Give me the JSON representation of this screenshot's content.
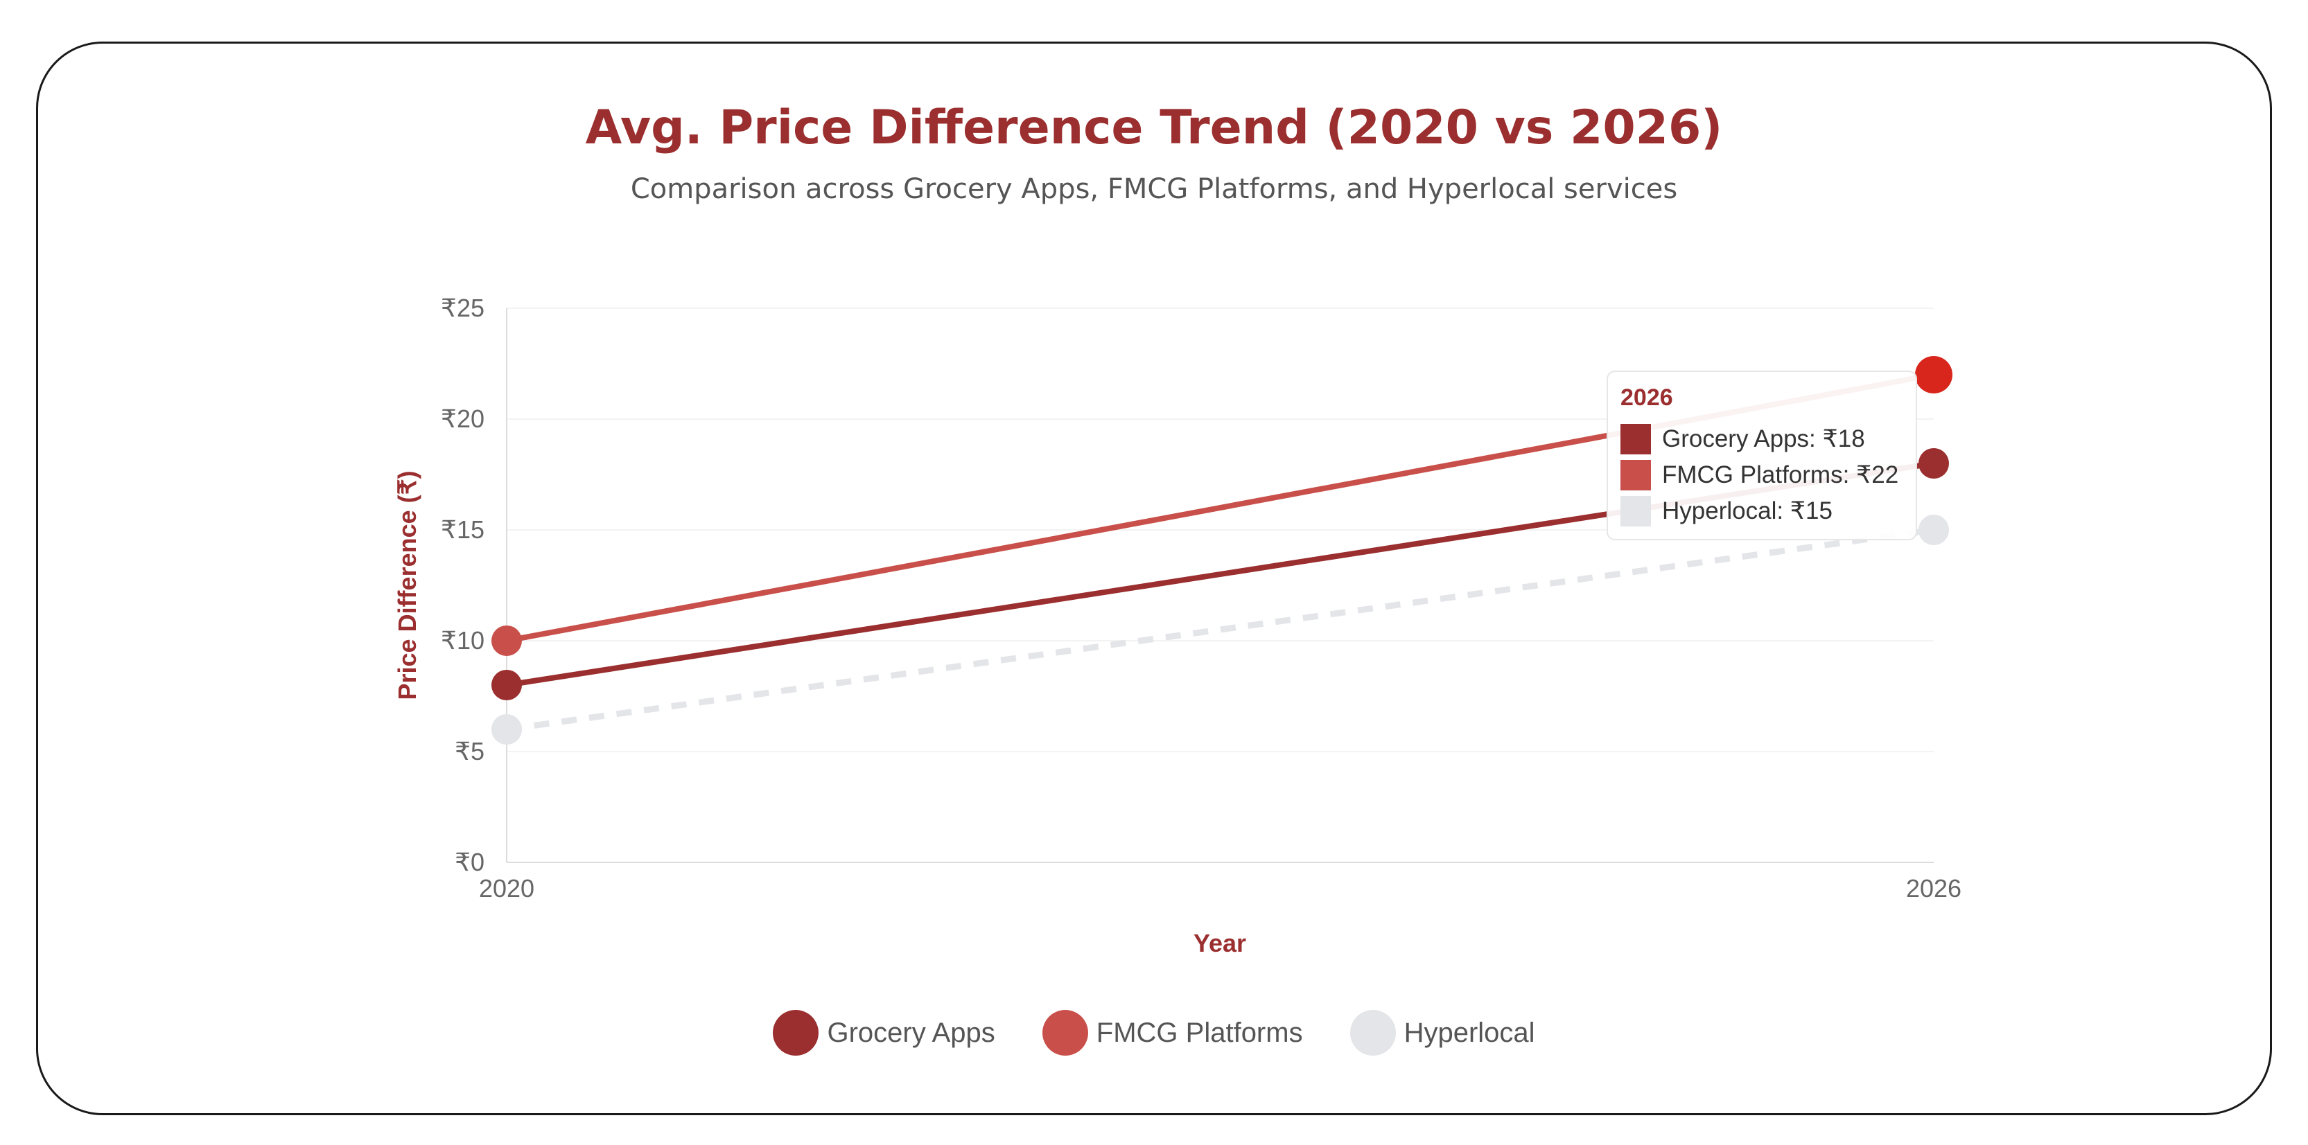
{
  "chart_data": {
    "type": "line",
    "title": "Avg. Price Difference Trend (2020 vs 2026)",
    "subtitle": "Comparison across Grocery Apps, FMCG Platforms, and Hyperlocal services",
    "xlabel": "Year",
    "ylabel": "Price Difference (₹)",
    "x": [
      "2020",
      "2026"
    ],
    "ylim": [
      0,
      25
    ],
    "yticks": [
      "₹0",
      "₹5",
      "₹10",
      "₹15",
      "₹20",
      "₹25"
    ],
    "grid": true,
    "legend_position": "bottom",
    "series": [
      {
        "name": "Grocery Apps",
        "values": [
          8,
          18
        ],
        "color": "#9b2e2e",
        "style": "solid"
      },
      {
        "name": "FMCG Platforms",
        "values": [
          10,
          22
        ],
        "color": "#c9504a",
        "style": "solid"
      },
      {
        "name": "Hyperlocal",
        "values": [
          6,
          15
        ],
        "color": "#e3e5e8",
        "style": "dashed"
      }
    ],
    "tooltip": {
      "title": "2026",
      "rows": [
        "Grocery Apps: ₹18",
        "FMCG Platforms: ₹22",
        "Hyperlocal: ₹15"
      ]
    },
    "highlight_color": "#d9261c"
  }
}
